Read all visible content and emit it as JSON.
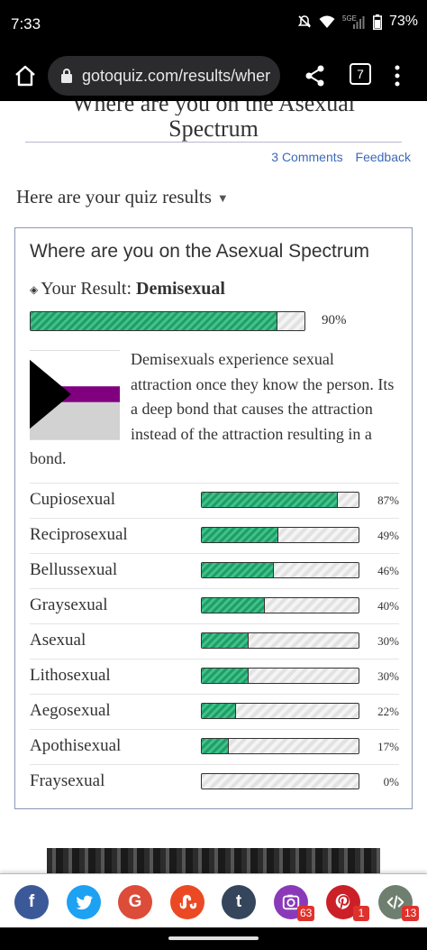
{
  "status_bar": {
    "time": "7:33",
    "battery": "73%",
    "network": "5GE"
  },
  "browser": {
    "url": "gotoquiz.com/results/wher",
    "tab_count": "7"
  },
  "page": {
    "title_partial": "Where are you on the Asexual",
    "title_line2": "Spectrum",
    "links": {
      "comments": "3 Comments",
      "feedback": "Feedback"
    },
    "results_heading": "Here are your quiz results"
  },
  "result_card": {
    "title": "Where are you on the Asexual Spectrum",
    "your_result_label": "Your Result:",
    "result_name": "Demisexual",
    "result_percent": 90,
    "result_percent_label": "90%",
    "description": "Demisexuals experience sexual attraction once they know the person. Its a deep bond that causes the attraction instead of the attraction resulting in a bond.",
    "scores": [
      {
        "name": "Cupiosexual",
        "percent": 87,
        "label": "87%"
      },
      {
        "name": "Reciprosexual",
        "percent": 49,
        "label": "49%"
      },
      {
        "name": "Bellussexual",
        "percent": 46,
        "label": "46%"
      },
      {
        "name": "Graysexual",
        "percent": 40,
        "label": "40%"
      },
      {
        "name": "Asexual",
        "percent": 30,
        "label": "30%"
      },
      {
        "name": "Lithosexual",
        "percent": 30,
        "label": "30%"
      },
      {
        "name": "Aegosexual",
        "percent": 22,
        "label": "22%"
      },
      {
        "name": "Apothisexual",
        "percent": 17,
        "label": "17%"
      },
      {
        "name": "Fraysexual",
        "percent": 0,
        "label": "0%"
      }
    ]
  },
  "share_bar": {
    "buttons": [
      {
        "name": "facebook",
        "glyph": "f",
        "color": "#3b5998"
      },
      {
        "name": "twitter",
        "glyph": "",
        "color": "#1da1f2"
      },
      {
        "name": "google",
        "glyph": "G",
        "color": "#dd4b39"
      },
      {
        "name": "stumbleupon",
        "glyph": "",
        "color": "#eb4924"
      },
      {
        "name": "tumblr",
        "glyph": "t",
        "color": "#35465c"
      },
      {
        "name": "instagram",
        "glyph": "",
        "color": "#8a3ab9",
        "count": "63"
      },
      {
        "name": "pinterest",
        "glyph": "",
        "color": "#cb2027",
        "count": "1"
      },
      {
        "name": "embed",
        "glyph": "",
        "color": "#6f7f6f",
        "count": "13"
      }
    ]
  },
  "colors": {
    "bar_fill": "#1f9e6a",
    "link": "#3a6ab8",
    "card_border": "#8c97b8",
    "flag_black": "#000000",
    "flag_gray": "#a3a3a3",
    "flag_purple": "#800080"
  }
}
